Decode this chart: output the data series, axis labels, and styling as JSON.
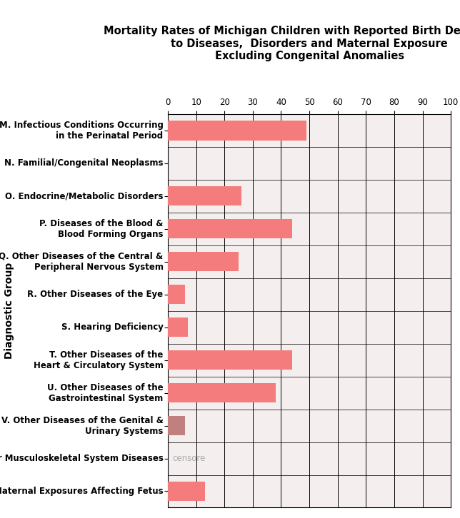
{
  "title": "Mortality Rates of Michigan Children with Reported Birth Defects due\nto Diseases,  Disorders and Maternal Exposure\nExcluding Congenital Anomalies",
  "categories": [
    "M. Infectious Conditions Occurring\nin the Perinatal Period",
    "N. Familial/Congenital Neoplasms",
    "O. Endocrine/Metabolic Disorders",
    "P. Diseases of the Blood &\nBlood Forming Organs",
    "Q. Other Diseases of the Central &\nPeripheral Nervous System",
    "R. Other Diseases of the Eye",
    "S. Hearing Deficiency",
    "T. Other Diseases of the\nHeart & Circulatory System",
    "U. Other Diseases of the\nGastrointestinal System",
    "V. Other Diseases of the Genital &\nUrinary Systems",
    "X. Other Musculoskeletal System Diseases",
    "Y. Maternal Exposures Affecting Fetus"
  ],
  "values": [
    49,
    0,
    26,
    44,
    25,
    6,
    7,
    44,
    38,
    6,
    0,
    13
  ],
  "censored": [
    false,
    false,
    false,
    false,
    false,
    false,
    false,
    false,
    false,
    false,
    true,
    false
  ],
  "bar_color": "#f47c7c",
  "censored_color": "#aaaaaa",
  "bar_color_V": "#c08080",
  "ylabel": "Diagnostic Group",
  "xlim": [
    0,
    100
  ],
  "xticks": [
    0,
    10,
    20,
    30,
    40,
    50,
    60,
    70,
    80,
    90,
    100
  ],
  "plot_bg_color": "#f5eeee",
  "title_bg_color": "#ffffff",
  "grid_color": "#000000",
  "title_fontsize": 10.5,
  "axis_label_fontsize": 10,
  "tick_fontsize": 8.5,
  "bar_height": 0.6,
  "censore_text": "censore"
}
